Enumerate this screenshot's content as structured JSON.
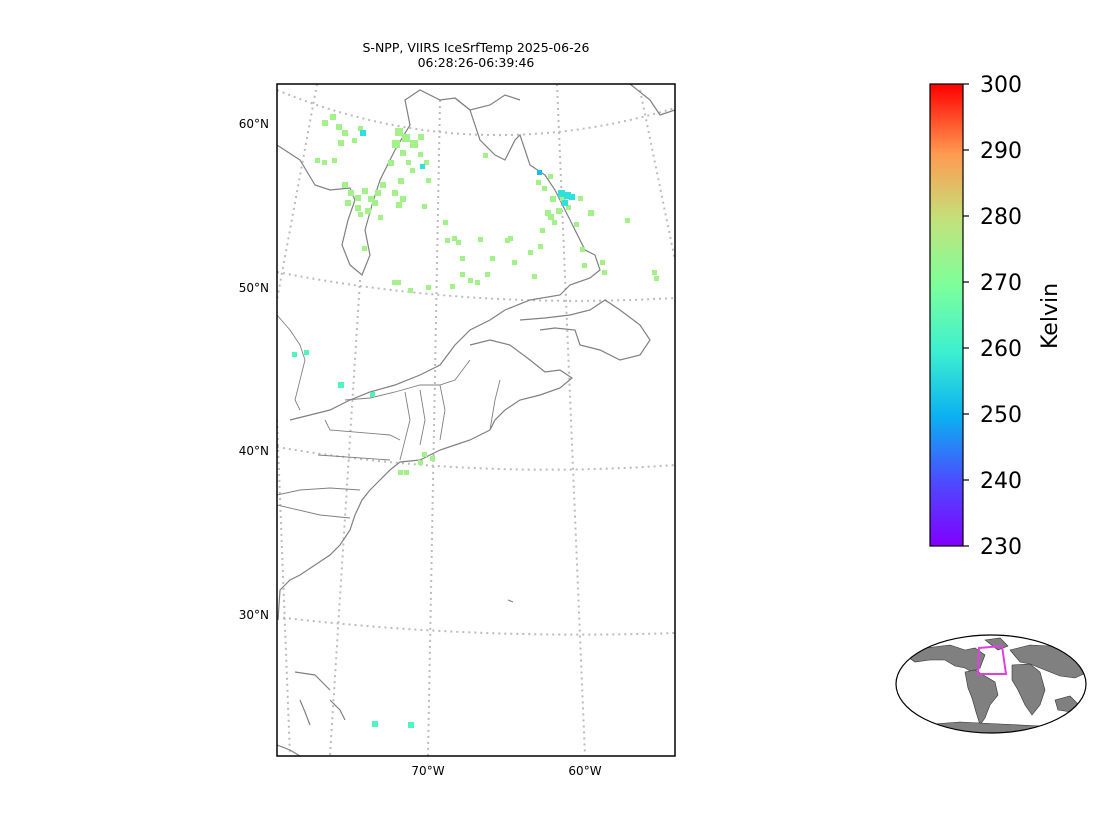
{
  "title": {
    "line1": "S-NPP, VIIRS IceSrfTemp 2025-06-26",
    "line2": "06:28:26-06:39:46"
  },
  "map": {
    "projection": "conic",
    "graticule": "dotted gray",
    "lat_labels": [
      "60°N",
      "50°N",
      "40°N",
      "30°N"
    ],
    "lon_labels": [
      "70°W",
      "60°W"
    ],
    "coastline_color": "#808080",
    "border_color": "#808080"
  },
  "colorbar": {
    "label": "Kelvin",
    "min": 230,
    "max": 300,
    "ticks": [
      "300",
      "290",
      "280",
      "270",
      "260",
      "250",
      "240",
      "230"
    ],
    "colormap": "rainbow"
  },
  "inset": {
    "land_color": "#808080",
    "footprint_color": "#e040e0"
  }
}
